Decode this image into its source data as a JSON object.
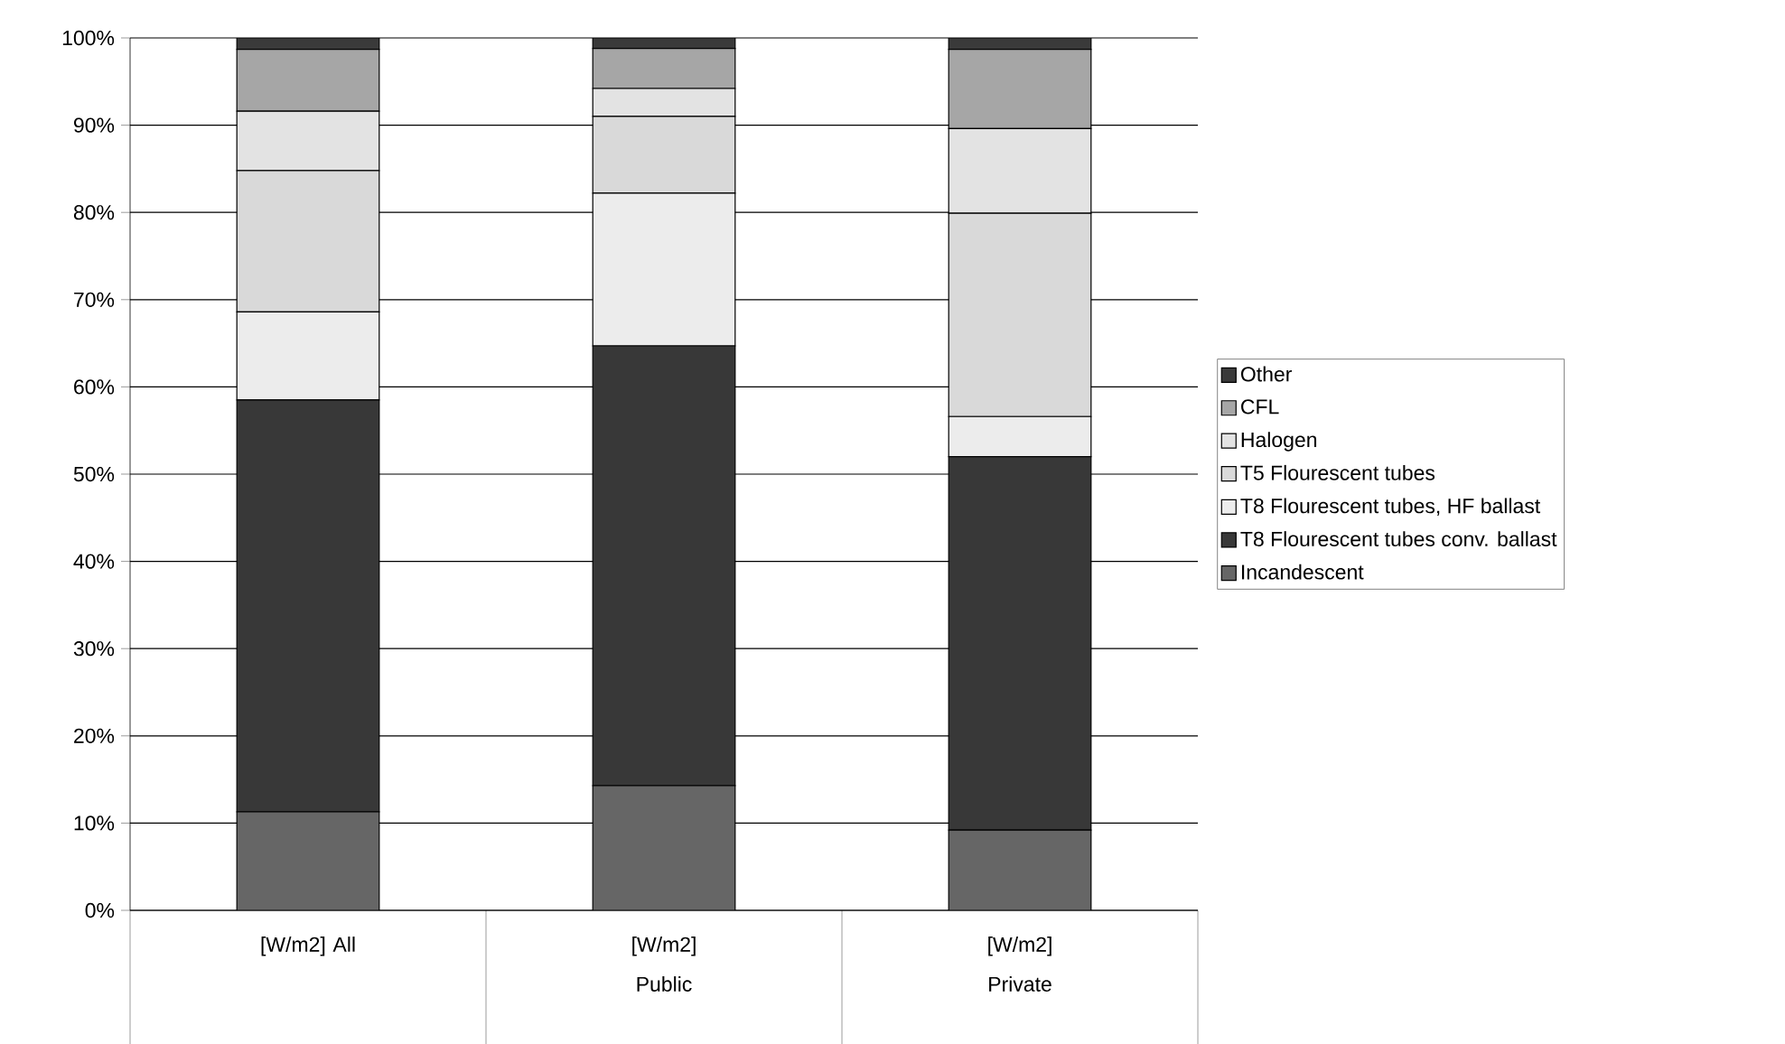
{
  "chart_data": {
    "type": "bar",
    "stacked": true,
    "categories": [
      "[W/m2] All",
      "[W/m2] Public",
      "[W/m2] Private"
    ],
    "series": [
      {
        "name": "Incandescent",
        "color": "#666666",
        "values": [
          11.3,
          14.3,
          9.2
        ]
      },
      {
        "name": "T8 Flourescent tubes conv. ballast",
        "color": "#383838",
        "values": [
          47.2,
          50.4,
          42.8
        ]
      },
      {
        "name": "T8 Flourescent tubes, HF ballast",
        "color": "#ececec",
        "values": [
          10.1,
          17.5,
          4.6
        ]
      },
      {
        "name": "T5 Flourescent tubes",
        "color": "#d9d9d9",
        "values": [
          16.2,
          8.8,
          23.3
        ]
      },
      {
        "name": "Halogen",
        "color": "#e3e3e3",
        "values": [
          6.8,
          3.2,
          9.7
        ]
      },
      {
        "name": "CFL",
        "color": "#a6a6a6",
        "values": [
          7.1,
          4.6,
          9.1
        ]
      },
      {
        "name": "Other",
        "color": "#3a3a3a",
        "values": [
          1.3,
          1.2,
          1.3
        ]
      }
    ],
    "ylim": [
      0,
      100
    ],
    "yticks": [
      {
        "value": 0,
        "label": "0%"
      },
      {
        "value": 10,
        "label": "10%"
      },
      {
        "value": 20,
        "label": "20%"
      },
      {
        "value": 30,
        "label": "30%"
      },
      {
        "value": 40,
        "label": "40%"
      },
      {
        "value": 50,
        "label": "50%"
      },
      {
        "value": 60,
        "label": "60%"
      },
      {
        "value": 70,
        "label": "70%"
      },
      {
        "value": 80,
        "label": "80%"
      },
      {
        "value": 90,
        "label": "90%"
      },
      {
        "value": 100,
        "label": "100%"
      }
    ],
    "grid": "y",
    "legend": "right"
  }
}
